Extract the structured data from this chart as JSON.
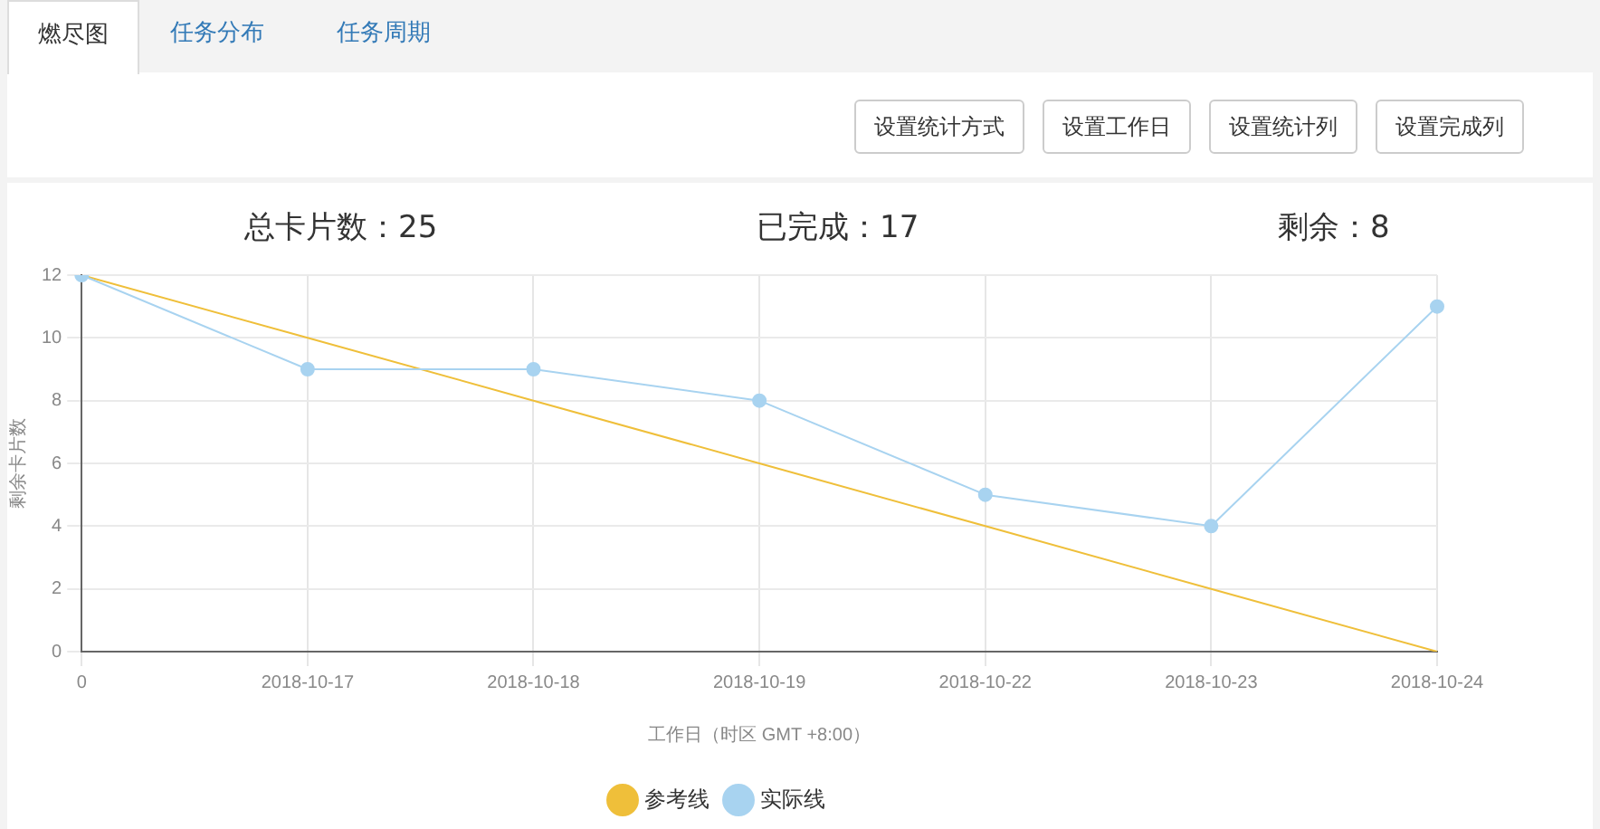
{
  "chart_data": {
    "type": "line",
    "ylabel": "剩余卡片数",
    "xlabel": "工作日（时区 GMT +8:00）",
    "categories": [
      "0",
      "2018-10-17",
      "2018-10-18",
      "2018-10-19",
      "2018-10-22",
      "2018-10-23",
      "2018-10-24"
    ],
    "series": [
      {
        "name": "参考线",
        "color": "#efbf3a",
        "values": [
          12,
          10,
          8,
          6,
          4,
          2,
          0
        ],
        "marker": "none"
      },
      {
        "name": "实际线",
        "color": "#a8d3f0",
        "values": [
          12,
          9,
          9,
          8,
          5,
          4,
          11
        ],
        "marker": "circle"
      }
    ],
    "ylim": [
      0,
      12
    ],
    "yticks": [
      0,
      2,
      4,
      6,
      8,
      10,
      12
    ],
    "grid": true,
    "legend": "bottom",
    "annotations": [
      "燃尽图",
      "任务分布",
      "任务周期",
      "设置统计方式",
      "设置工作日",
      "设置统计列",
      "设置完成列",
      "总卡片数：25",
      "已完成：17",
      "剩余：8"
    ]
  }
}
